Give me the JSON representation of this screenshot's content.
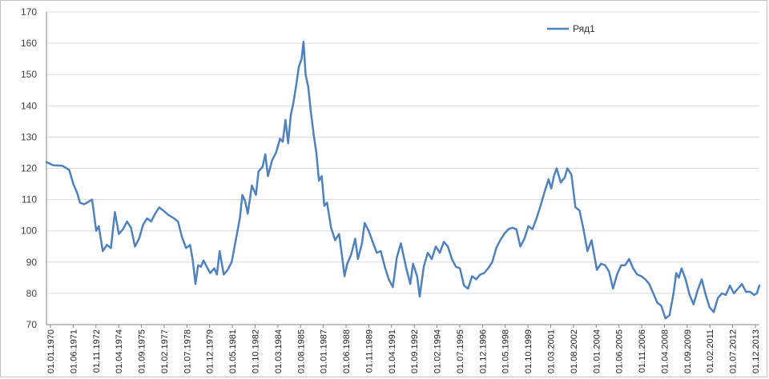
{
  "chart_data": {
    "type": "line",
    "title": "",
    "xlabel": "",
    "ylabel": "",
    "ylim": [
      70,
      170
    ],
    "yticks": [
      70,
      80,
      90,
      100,
      110,
      120,
      130,
      140,
      150,
      160,
      170
    ],
    "grid": {
      "horizontal": true,
      "vertical": false
    },
    "legend": {
      "position": "top-right",
      "entries": [
        "Ряд1"
      ]
    },
    "xlim": [
      "1970-01-01",
      "2014-04-01"
    ],
    "xticklabels": [
      "01.01.1970",
      "01.06.1971",
      "01.11.1972",
      "01.04.1974",
      "01.09.1975",
      "01.02.1977",
      "01.07.1978",
      "01.12.1979",
      "01.05.1981",
      "01.10.1982",
      "01.03.1984",
      "01.08.1985",
      "01.01.1987",
      "01.06.1988",
      "01.11.1989",
      "01.04.1991",
      "01.09.1992",
      "01.02.1994",
      "01.07.1995",
      "01.12.1996",
      "01.05.1998",
      "01.10.1999",
      "01.03.2001",
      "01.08.2002",
      "01.01.2004",
      "01.06.2005",
      "01.11.2006",
      "01.04.2008",
      "01.09.2009",
      "01.02.2011",
      "01.07.2012",
      "01.12.2013"
    ],
    "series": [
      {
        "name": "Ряд1",
        "color": "#4f81bd",
        "points": [
          [
            "1970-01-01",
            122.0
          ],
          [
            "1970-06-01",
            121.0
          ],
          [
            "1971-01-01",
            120.8
          ],
          [
            "1971-06-01",
            119.5
          ],
          [
            "1971-09-01",
            115.0
          ],
          [
            "1971-12-01",
            112.0
          ],
          [
            "1972-02-01",
            109.0
          ],
          [
            "1972-05-01",
            108.5
          ],
          [
            "1972-08-01",
            109.2
          ],
          [
            "1972-11-01",
            110.0
          ],
          [
            "1973-02-01",
            100.0
          ],
          [
            "1973-04-01",
            101.5
          ],
          [
            "1973-07-01",
            93.5
          ],
          [
            "1973-10-01",
            95.5
          ],
          [
            "1974-01-01",
            94.5
          ],
          [
            "1974-04-01",
            106.0
          ],
          [
            "1974-07-01",
            99.0
          ],
          [
            "1974-10-01",
            100.5
          ],
          [
            "1975-01-01",
            103.0
          ],
          [
            "1975-04-01",
            101.0
          ],
          [
            "1975-07-01",
            95.0
          ],
          [
            "1975-10-01",
            97.5
          ],
          [
            "1976-01-01",
            102.0
          ],
          [
            "1976-04-01",
            104.0
          ],
          [
            "1976-07-01",
            103.0
          ],
          [
            "1976-10-01",
            105.5
          ],
          [
            "1977-01-01",
            107.5
          ],
          [
            "1977-04-01",
            106.5
          ],
          [
            "1977-08-01",
            105.0
          ],
          [
            "1977-12-01",
            104.0
          ],
          [
            "1978-03-01",
            103.0
          ],
          [
            "1978-06-01",
            98.0
          ],
          [
            "1978-09-01",
            94.5
          ],
          [
            "1978-12-01",
            95.5
          ],
          [
            "1979-02-01",
            90.5
          ],
          [
            "1979-04-01",
            83.0
          ],
          [
            "1979-06-01",
            89.0
          ],
          [
            "1979-08-01",
            88.5
          ],
          [
            "1979-10-01",
            90.5
          ],
          [
            "1980-01-01",
            88.0
          ],
          [
            "1980-03-01",
            86.5
          ],
          [
            "1980-06-01",
            88.0
          ],
          [
            "1980-08-01",
            86.0
          ],
          [
            "1980-10-01",
            93.5
          ],
          [
            "1981-01-01",
            86.0
          ],
          [
            "1981-04-01",
            87.5
          ],
          [
            "1981-07-01",
            90.0
          ],
          [
            "1981-10-01",
            97.0
          ],
          [
            "1982-01-01",
            104.0
          ],
          [
            "1982-03-01",
            111.5
          ],
          [
            "1982-05-01",
            109.5
          ],
          [
            "1982-07-01",
            105.5
          ],
          [
            "1982-10-01",
            114.5
          ],
          [
            "1983-01-01",
            111.5
          ],
          [
            "1983-03-01",
            119.0
          ],
          [
            "1983-06-01",
            120.5
          ],
          [
            "1983-08-01",
            124.5
          ],
          [
            "1983-10-01",
            117.5
          ],
          [
            "1984-01-01",
            122.5
          ],
          [
            "1984-04-01",
            125.0
          ],
          [
            "1984-07-01",
            129.5
          ],
          [
            "1984-09-01",
            128.5
          ],
          [
            "1984-11-01",
            135.5
          ],
          [
            "1985-01-01",
            128.0
          ],
          [
            "1985-03-01",
            137.0
          ],
          [
            "1985-05-01",
            141.0
          ],
          [
            "1985-07-01",
            146.5
          ],
          [
            "1985-09-01",
            152.5
          ],
          [
            "1985-11-01",
            155.0
          ],
          [
            "1985-12-15",
            160.5
          ],
          [
            "1986-02-01",
            150.0
          ],
          [
            "1986-04-01",
            146.0
          ],
          [
            "1986-06-01",
            138.0
          ],
          [
            "1986-08-01",
            131.0
          ],
          [
            "1986-10-01",
            125.0
          ],
          [
            "1986-12-01",
            116.0
          ],
          [
            "1987-02-01",
            117.5
          ],
          [
            "1987-04-01",
            108.0
          ],
          [
            "1987-06-01",
            109.0
          ],
          [
            "1987-09-01",
            101.0
          ],
          [
            "1987-12-01",
            97.0
          ],
          [
            "1988-03-01",
            99.0
          ],
          [
            "1988-05-01",
            92.5
          ],
          [
            "1988-07-01",
            85.5
          ],
          [
            "1988-09-01",
            89.5
          ],
          [
            "1988-12-01",
            92.5
          ],
          [
            "1989-03-01",
            97.5
          ],
          [
            "1989-05-01",
            91.0
          ],
          [
            "1989-08-01",
            96.0
          ],
          [
            "1989-10-01",
            102.5
          ],
          [
            "1990-01-01",
            100.0
          ],
          [
            "1990-04-01",
            96.5
          ],
          [
            "1990-07-01",
            93.0
          ],
          [
            "1990-10-01",
            93.5
          ],
          [
            "1991-01-01",
            88.5
          ],
          [
            "1991-04-01",
            84.5
          ],
          [
            "1991-07-01",
            82.0
          ],
          [
            "1991-10-01",
            91.5
          ],
          [
            "1992-01-01",
            96.0
          ],
          [
            "1992-03-01",
            92.0
          ],
          [
            "1992-05-01",
            88.0
          ],
          [
            "1992-08-01",
            83.0
          ],
          [
            "1992-10-01",
            89.5
          ],
          [
            "1993-01-01",
            85.5
          ],
          [
            "1993-03-01",
            79.0
          ],
          [
            "1993-06-01",
            88.5
          ],
          [
            "1993-09-01",
            93.0
          ],
          [
            "1993-12-01",
            91.0
          ],
          [
            "1994-03-01",
            95.0
          ],
          [
            "1994-06-01",
            93.0
          ],
          [
            "1994-09-01",
            96.5
          ],
          [
            "1994-12-01",
            95.0
          ],
          [
            "1995-03-01",
            91.0
          ],
          [
            "1995-06-01",
            88.5
          ],
          [
            "1995-09-01",
            88.0
          ],
          [
            "1995-12-01",
            82.5
          ],
          [
            "1996-03-01",
            81.5
          ],
          [
            "1996-06-01",
            85.5
          ],
          [
            "1996-09-01",
            84.5
          ],
          [
            "1996-12-01",
            86.0
          ],
          [
            "1997-03-01",
            86.5
          ],
          [
            "1997-06-01",
            88.0
          ],
          [
            "1997-09-01",
            90.0
          ],
          [
            "1997-12-01",
            94.5
          ],
          [
            "1998-03-01",
            97.0
          ],
          [
            "1998-06-01",
            99.0
          ],
          [
            "1998-09-01",
            100.5
          ],
          [
            "1998-12-01",
            101.0
          ],
          [
            "1999-03-01",
            100.5
          ],
          [
            "1999-06-01",
            95.0
          ],
          [
            "1999-09-01",
            97.5
          ],
          [
            "1999-12-01",
            101.5
          ],
          [
            "2000-03-01",
            100.5
          ],
          [
            "2000-06-01",
            104.0
          ],
          [
            "2000-09-01",
            108.0
          ],
          [
            "2000-12-01",
            112.5
          ],
          [
            "2001-03-01",
            116.5
          ],
          [
            "2001-05-01",
            113.5
          ],
          [
            "2001-07-01",
            117.5
          ],
          [
            "2001-09-01",
            120.0
          ],
          [
            "2001-12-01",
            115.5
          ],
          [
            "2002-03-01",
            117.0
          ],
          [
            "2002-05-01",
            120.0
          ],
          [
            "2002-08-01",
            118.0
          ],
          [
            "2002-11-01",
            107.5
          ],
          [
            "2003-02-01",
            106.5
          ],
          [
            "2003-05-01",
            100.5
          ],
          [
            "2003-08-01",
            93.5
          ],
          [
            "2003-11-01",
            97.0
          ],
          [
            "2004-03-01",
            87.5
          ],
          [
            "2004-06-01",
            89.5
          ],
          [
            "2004-09-01",
            89.0
          ],
          [
            "2004-12-01",
            87.0
          ],
          [
            "2005-03-01",
            81.5
          ],
          [
            "2005-06-01",
            86.0
          ],
          [
            "2005-09-01",
            89.0
          ],
          [
            "2005-12-01",
            89.0
          ],
          [
            "2006-03-01",
            91.0
          ],
          [
            "2006-06-01",
            88.0
          ],
          [
            "2006-09-01",
            86.0
          ],
          [
            "2006-12-01",
            85.5
          ],
          [
            "2007-03-01",
            84.5
          ],
          [
            "2007-06-01",
            83.0
          ],
          [
            "2007-09-01",
            80.0
          ],
          [
            "2007-12-01",
            77.0
          ],
          [
            "2008-03-01",
            76.0
          ],
          [
            "2008-06-01",
            72.0
          ],
          [
            "2008-09-01",
            73.0
          ],
          [
            "2008-12-01",
            80.0
          ],
          [
            "2009-02-01",
            86.5
          ],
          [
            "2009-04-01",
            85.0
          ],
          [
            "2009-06-01",
            88.0
          ],
          [
            "2009-09-01",
            84.5
          ],
          [
            "2009-12-01",
            79.5
          ],
          [
            "2010-03-01",
            76.5
          ],
          [
            "2010-06-01",
            81.0
          ],
          [
            "2010-09-01",
            84.5
          ],
          [
            "2010-12-01",
            79.5
          ],
          [
            "2011-03-01",
            75.5
          ],
          [
            "2011-06-01",
            74.0
          ],
          [
            "2011-09-01",
            78.5
          ],
          [
            "2011-12-01",
            80.0
          ],
          [
            "2012-03-01",
            79.5
          ],
          [
            "2012-06-01",
            82.5
          ],
          [
            "2012-09-01",
            80.0
          ],
          [
            "2012-12-01",
            81.5
          ],
          [
            "2013-03-01",
            83.0
          ],
          [
            "2013-06-01",
            80.5
          ],
          [
            "2013-09-01",
            80.5
          ],
          [
            "2013-12-01",
            79.5
          ],
          [
            "2014-02-01",
            80.0
          ],
          [
            "2014-04-01",
            82.5
          ]
        ]
      }
    ]
  }
}
